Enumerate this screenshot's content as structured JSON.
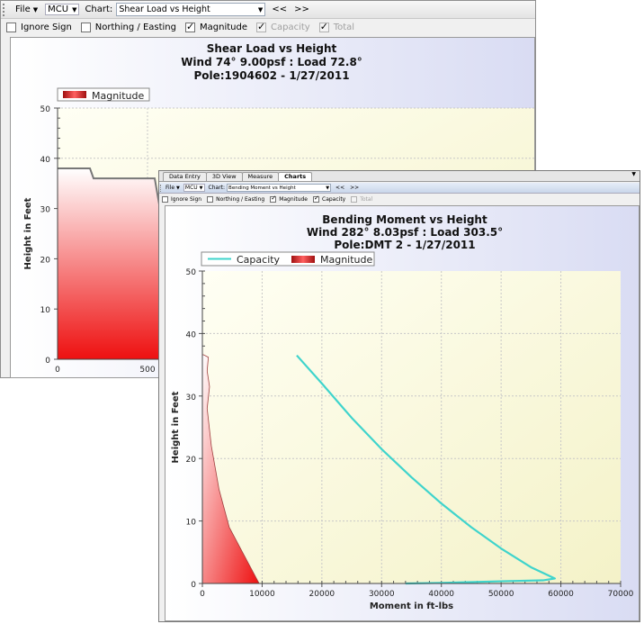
{
  "win1": {
    "toolbar": {
      "file_label": "File",
      "mcu_label": "MCU",
      "chart_label": "Chart:",
      "chart_select": "Shear Load vs Height",
      "prev": "<<",
      "next": ">>"
    },
    "options": [
      {
        "label": "Ignore Sign",
        "checked": false,
        "disabled": false
      },
      {
        "label": "Northing / Easting",
        "checked": false,
        "disabled": false
      },
      {
        "label": "Magnitude",
        "checked": true,
        "disabled": false
      },
      {
        "label": "Capacity",
        "checked": true,
        "disabled": true
      },
      {
        "label": "Total",
        "checked": true,
        "disabled": true
      }
    ],
    "chart": {
      "title1": "Shear Load vs Height",
      "title2": "Wind 74° 9.00psf  :  Load 72.8°",
      "title3": "Pole:1904602  -  1/27/2011",
      "legend": "Magnitude",
      "ylabel": "Height in Feet",
      "yticks": [
        "0",
        "10",
        "20",
        "30",
        "40",
        "50"
      ],
      "xticks": [
        "0",
        "500"
      ]
    }
  },
  "win2": {
    "tabs": [
      "Data Entry",
      "3D View",
      "Measure",
      "Charts"
    ],
    "active_tab": 3,
    "toolbar": {
      "file_label": "File",
      "mcu_label": "MCU",
      "chart_label": "Chart:",
      "chart_select": "Bending Moment vs Height",
      "prev": "<<",
      "next": ">>"
    },
    "options": [
      {
        "label": "Ignore Sign",
        "checked": false,
        "disabled": false
      },
      {
        "label": "Northing / Easting",
        "checked": false,
        "disabled": false
      },
      {
        "label": "Magnitude",
        "checked": true,
        "disabled": false
      },
      {
        "label": "Capacity",
        "checked": true,
        "disabled": false
      },
      {
        "label": "Total",
        "checked": false,
        "disabled": true
      }
    ],
    "chart": {
      "title1": "Bending Moment vs Height",
      "title2": "Wind 282° 8.03psf  :  Load 303.5°",
      "title3": "Pole:DMT 2  -  1/27/2011",
      "legend_capacity": "Capacity",
      "legend_magnitude": "Magnitude",
      "ylabel": "Height in Feet",
      "xlabel": "Moment in ft-lbs",
      "yticks": [
        "0",
        "10",
        "20",
        "30",
        "40",
        "50"
      ],
      "xticks": [
        "0",
        "10000",
        "20000",
        "30000",
        "40000",
        "50000",
        "60000",
        "70000"
      ]
    }
  },
  "chart_data": [
    {
      "type": "area",
      "title": "Shear Load vs Height",
      "subtitle": "Wind 74° 9.00psf  :  Load 72.8°  /  Pole:1904602  -  1/27/2011",
      "ylabel": "Height in Feet",
      "ylim": [
        0,
        50
      ],
      "x_visible_max": 700,
      "series": [
        {
          "name": "Magnitude",
          "color": "#e02020",
          "points": [
            [
              0,
              38
            ],
            [
              180,
              38
            ],
            [
              200,
              36
            ],
            [
              540,
              36
            ],
            [
              570,
              29.8
            ],
            [
              700,
              29.8
            ]
          ]
        }
      ]
    },
    {
      "type": "line",
      "title": "Bending Moment vs Height",
      "subtitle": "Wind 282° 8.03psf  :  Load 303.5°  /  Pole:DMT 2  -  1/27/2011",
      "xlabel": "Moment in ft-lbs",
      "ylabel": "Height in Feet",
      "xlim": [
        0,
        70000
      ],
      "ylim": [
        0,
        50
      ],
      "series": [
        {
          "name": "Capacity",
          "color": "#3fd4cc",
          "points": [
            [
              15800,
              36.5
            ],
            [
              20000,
              32
            ],
            [
              25000,
              26.5
            ],
            [
              30000,
              21.5
            ],
            [
              35000,
              17
            ],
            [
              40000,
              12.8
            ],
            [
              45000,
              9
            ],
            [
              50000,
              5.6
            ],
            [
              55000,
              2.6
            ],
            [
              59000,
              0.8
            ],
            [
              57000,
              0.5
            ],
            [
              50000,
              0.35
            ],
            [
              40000,
              0.1
            ],
            [
              34000,
              0
            ]
          ]
        },
        {
          "name": "Magnitude",
          "color": "#e02020",
          "points": [
            [
              0,
              0
            ],
            [
              9500,
              0
            ],
            [
              7000,
              4.5
            ],
            [
              4500,
              9
            ],
            [
              2800,
              15
            ],
            [
              1500,
              22
            ],
            [
              800,
              28
            ],
            [
              1200,
              31.5
            ],
            [
              800,
              34
            ],
            [
              1000,
              36.2
            ],
            [
              200,
              36.6
            ],
            [
              0,
              36.6
            ]
          ]
        }
      ]
    }
  ]
}
